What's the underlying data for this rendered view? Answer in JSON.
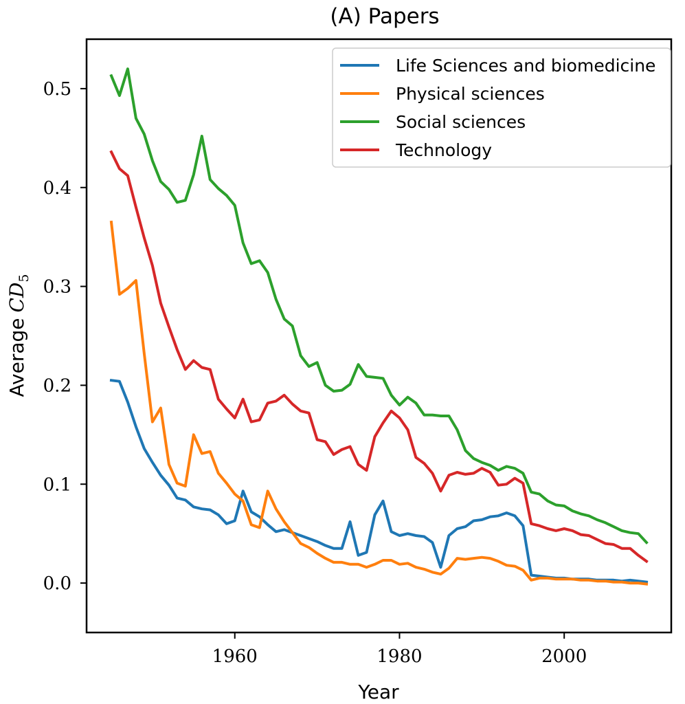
{
  "chart_data": {
    "type": "line",
    "title": "(A) Papers",
    "xlabel": "Year",
    "ylabel_prefix": "Average",
    "ylabel_var": "CD",
    "ylabel_sub": "5",
    "xlim": [
      1942,
      2013
    ],
    "ylim": [
      -0.05,
      0.55
    ],
    "xticks": [
      1960,
      1980,
      2000
    ],
    "yticks": [
      0.0,
      0.1,
      0.2,
      0.3,
      0.4,
      0.5
    ],
    "ytick_labels": [
      "0.0",
      "0.1",
      "0.2",
      "0.3",
      "0.4",
      "0.5"
    ],
    "grid": false,
    "legend_position": "top-right",
    "x": [
      1945,
      1946,
      1947,
      1948,
      1949,
      1950,
      1951,
      1952,
      1953,
      1954,
      1955,
      1956,
      1957,
      1958,
      1959,
      1960,
      1961,
      1962,
      1963,
      1964,
      1965,
      1966,
      1967,
      1968,
      1969,
      1970,
      1971,
      1972,
      1973,
      1974,
      1975,
      1976,
      1977,
      1978,
      1979,
      1980,
      1981,
      1982,
      1983,
      1984,
      1985,
      1986,
      1987,
      1988,
      1989,
      1990,
      1991,
      1992,
      1993,
      1994,
      1995,
      1996,
      1997,
      1998,
      1999,
      2000,
      2001,
      2002,
      2003,
      2004,
      2005,
      2006,
      2007,
      2008,
      2009,
      2010
    ],
    "series": [
      {
        "name": "Life Sciences and biomedicine",
        "color": "#1f77b4",
        "values": [
          0.205,
          0.204,
          0.183,
          0.158,
          0.136,
          0.122,
          0.109,
          0.099,
          0.086,
          0.084,
          0.077,
          0.075,
          0.074,
          0.069,
          0.06,
          0.063,
          0.093,
          0.072,
          0.067,
          0.059,
          0.052,
          0.054,
          0.051,
          0.048,
          0.045,
          0.042,
          0.038,
          0.035,
          0.035,
          0.062,
          0.028,
          0.031,
          0.069,
          0.083,
          0.052,
          0.048,
          0.05,
          0.048,
          0.047,
          0.041,
          0.016,
          0.048,
          0.055,
          0.057,
          0.063,
          0.064,
          0.067,
          0.068,
          0.071,
          0.068,
          0.058,
          0.008,
          0.007,
          0.006,
          0.005,
          0.005,
          0.004,
          0.004,
          0.004,
          0.003,
          0.003,
          0.003,
          0.002,
          0.003,
          0.002,
          0.001
        ]
      },
      {
        "name": "Physical sciences",
        "color": "#ff7f0e",
        "values": [
          0.365,
          0.292,
          0.298,
          0.306,
          0.232,
          0.163,
          0.177,
          0.12,
          0.101,
          0.098,
          0.15,
          0.131,
          0.133,
          0.111,
          0.101,
          0.09,
          0.083,
          0.059,
          0.056,
          0.093,
          0.075,
          0.062,
          0.051,
          0.04,
          0.036,
          0.03,
          0.025,
          0.021,
          0.021,
          0.019,
          0.019,
          0.016,
          0.019,
          0.023,
          0.023,
          0.019,
          0.02,
          0.016,
          0.014,
          0.011,
          0.009,
          0.015,
          0.025,
          0.024,
          0.025,
          0.026,
          0.025,
          0.022,
          0.018,
          0.017,
          0.013,
          0.003,
          0.005,
          0.005,
          0.004,
          0.004,
          0.004,
          0.003,
          0.003,
          0.002,
          0.002,
          0.001,
          0.001,
          0.0,
          0.0,
          -0.001
        ]
      },
      {
        "name": "Social sciences",
        "color": "#2ca02c",
        "values": [
          0.513,
          0.493,
          0.52,
          0.47,
          0.454,
          0.427,
          0.406,
          0.398,
          0.385,
          0.387,
          0.413,
          0.452,
          0.408,
          0.399,
          0.392,
          0.382,
          0.344,
          0.323,
          0.326,
          0.314,
          0.287,
          0.267,
          0.26,
          0.23,
          0.219,
          0.223,
          0.2,
          0.194,
          0.195,
          0.201,
          0.221,
          0.209,
          0.208,
          0.207,
          0.19,
          0.18,
          0.188,
          0.182,
          0.17,
          0.17,
          0.169,
          0.169,
          0.155,
          0.134,
          0.126,
          0.122,
          0.119,
          0.114,
          0.118,
          0.116,
          0.111,
          0.092,
          0.09,
          0.083,
          0.079,
          0.078,
          0.073,
          0.07,
          0.068,
          0.064,
          0.061,
          0.057,
          0.053,
          0.051,
          0.05,
          0.041
        ]
      },
      {
        "name": "Technology",
        "color": "#d62728",
        "values": [
          0.436,
          0.419,
          0.412,
          0.38,
          0.349,
          0.321,
          0.283,
          0.259,
          0.236,
          0.216,
          0.225,
          0.218,
          0.216,
          0.186,
          0.176,
          0.167,
          0.186,
          0.163,
          0.165,
          0.182,
          0.184,
          0.19,
          0.181,
          0.174,
          0.172,
          0.145,
          0.143,
          0.13,
          0.135,
          0.138,
          0.12,
          0.114,
          0.148,
          0.162,
          0.174,
          0.167,
          0.155,
          0.127,
          0.121,
          0.111,
          0.093,
          0.109,
          0.112,
          0.11,
          0.111,
          0.116,
          0.112,
          0.099,
          0.1,
          0.106,
          0.101,
          0.06,
          0.058,
          0.055,
          0.053,
          0.055,
          0.053,
          0.049,
          0.048,
          0.044,
          0.04,
          0.039,
          0.035,
          0.035,
          0.028,
          0.022
        ]
      }
    ]
  }
}
